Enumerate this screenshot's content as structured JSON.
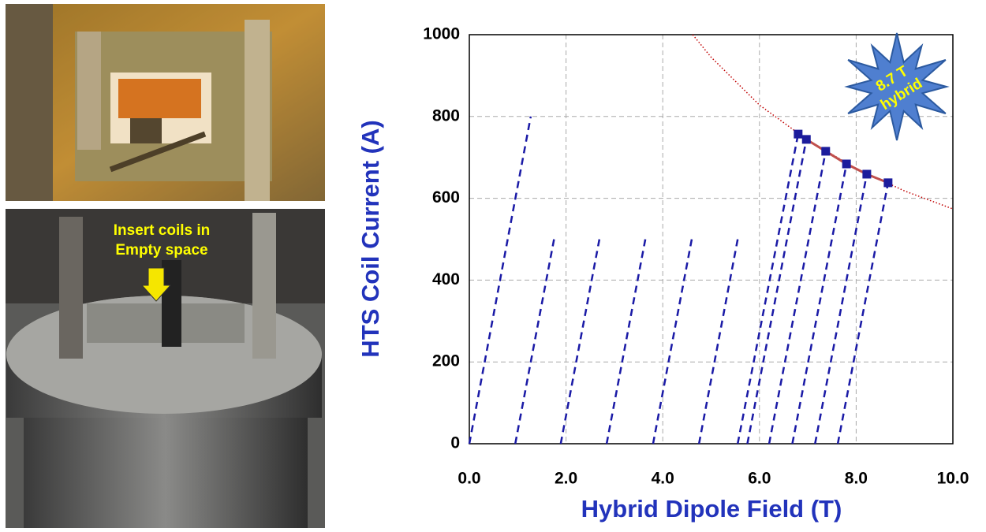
{
  "photo_label": [
    "Insert coils in",
    "Empty space"
  ],
  "chart_data": {
    "type": "line",
    "xlabel": "Hybrid Dipole Field (T)",
    "ylabel": "HTS Coil Current (A)",
    "annotation": [
      "8.7 T",
      "hybrid"
    ],
    "xlim": [
      0,
      10
    ],
    "xticks": [
      {
        "value": 0,
        "label": "0.0"
      },
      {
        "value": 2,
        "label": "2.0"
      },
      {
        "value": 4,
        "label": "4.0"
      },
      {
        "value": 6,
        "label": "6.0"
      },
      {
        "value": 8,
        "label": "8.0"
      },
      {
        "value": 10,
        "label": "10.0"
      }
    ],
    "ylim": [
      0,
      1000
    ],
    "yticks": [
      0,
      200,
      400,
      600,
      800,
      1000
    ],
    "grid": true,
    "series": [
      {
        "color": "#1a1aa6",
        "style": "dashed",
        "x": [
          0.0,
          1.27
        ],
        "values": [
          0,
          800
        ]
      },
      {
        "color": "#1a1aa6",
        "style": "dashed",
        "x": [
          0.95,
          1.76
        ],
        "values": [
          0,
          505
        ]
      },
      {
        "color": "#1a1aa6",
        "style": "dashed",
        "x": [
          1.89,
          2.69
        ],
        "values": [
          0,
          500
        ]
      },
      {
        "color": "#1a1aa6",
        "style": "dashed",
        "x": [
          2.84,
          3.64
        ],
        "values": [
          0,
          500
        ]
      },
      {
        "color": "#1a1aa6",
        "style": "dashed",
        "x": [
          3.8,
          4.6
        ],
        "values": [
          0,
          500
        ]
      },
      {
        "color": "#1a1aa6",
        "style": "dashed",
        "x": [
          4.75,
          5.55
        ],
        "values": [
          0,
          500
        ]
      },
      {
        "color": "#1a1aa6",
        "style": "dashed",
        "x": [
          5.55,
          6.8
        ],
        "values": [
          0,
          757
        ]
      },
      {
        "color": "#1a1aa6",
        "style": "dashed",
        "x": [
          5.75,
          6.97
        ],
        "values": [
          0,
          744
        ]
      },
      {
        "color": "#1a1aa6",
        "style": "dashed",
        "x": [
          6.2,
          7.37
        ],
        "values": [
          0,
          715
        ]
      },
      {
        "color": "#1a1aa6",
        "style": "dashed",
        "x": [
          6.68,
          7.8
        ],
        "values": [
          0,
          684
        ]
      },
      {
        "color": "#1a1aa6",
        "style": "dashed",
        "x": [
          7.15,
          8.22
        ],
        "values": [
          0,
          659
        ]
      },
      {
        "color": "#1a1aa6",
        "style": "dashed",
        "x": [
          7.62,
          8.66
        ],
        "values": [
          0,
          638
        ]
      },
      {
        "color": "#c00000",
        "style": "dotted",
        "x": [
          4.62,
          5,
          6,
          7,
          8,
          9,
          10
        ],
        "values": [
          1000,
          945,
          828,
          742,
          673,
          618,
          574
        ]
      },
      {
        "color": "#c0504d",
        "style": "solid",
        "marker": "square",
        "marker_color": "#1c1c9c",
        "x": [
          6.8,
          6.97,
          7.37,
          7.8,
          8.22,
          8.66
        ],
        "values": [
          757,
          744,
          715,
          684,
          659,
          638
        ]
      }
    ]
  }
}
